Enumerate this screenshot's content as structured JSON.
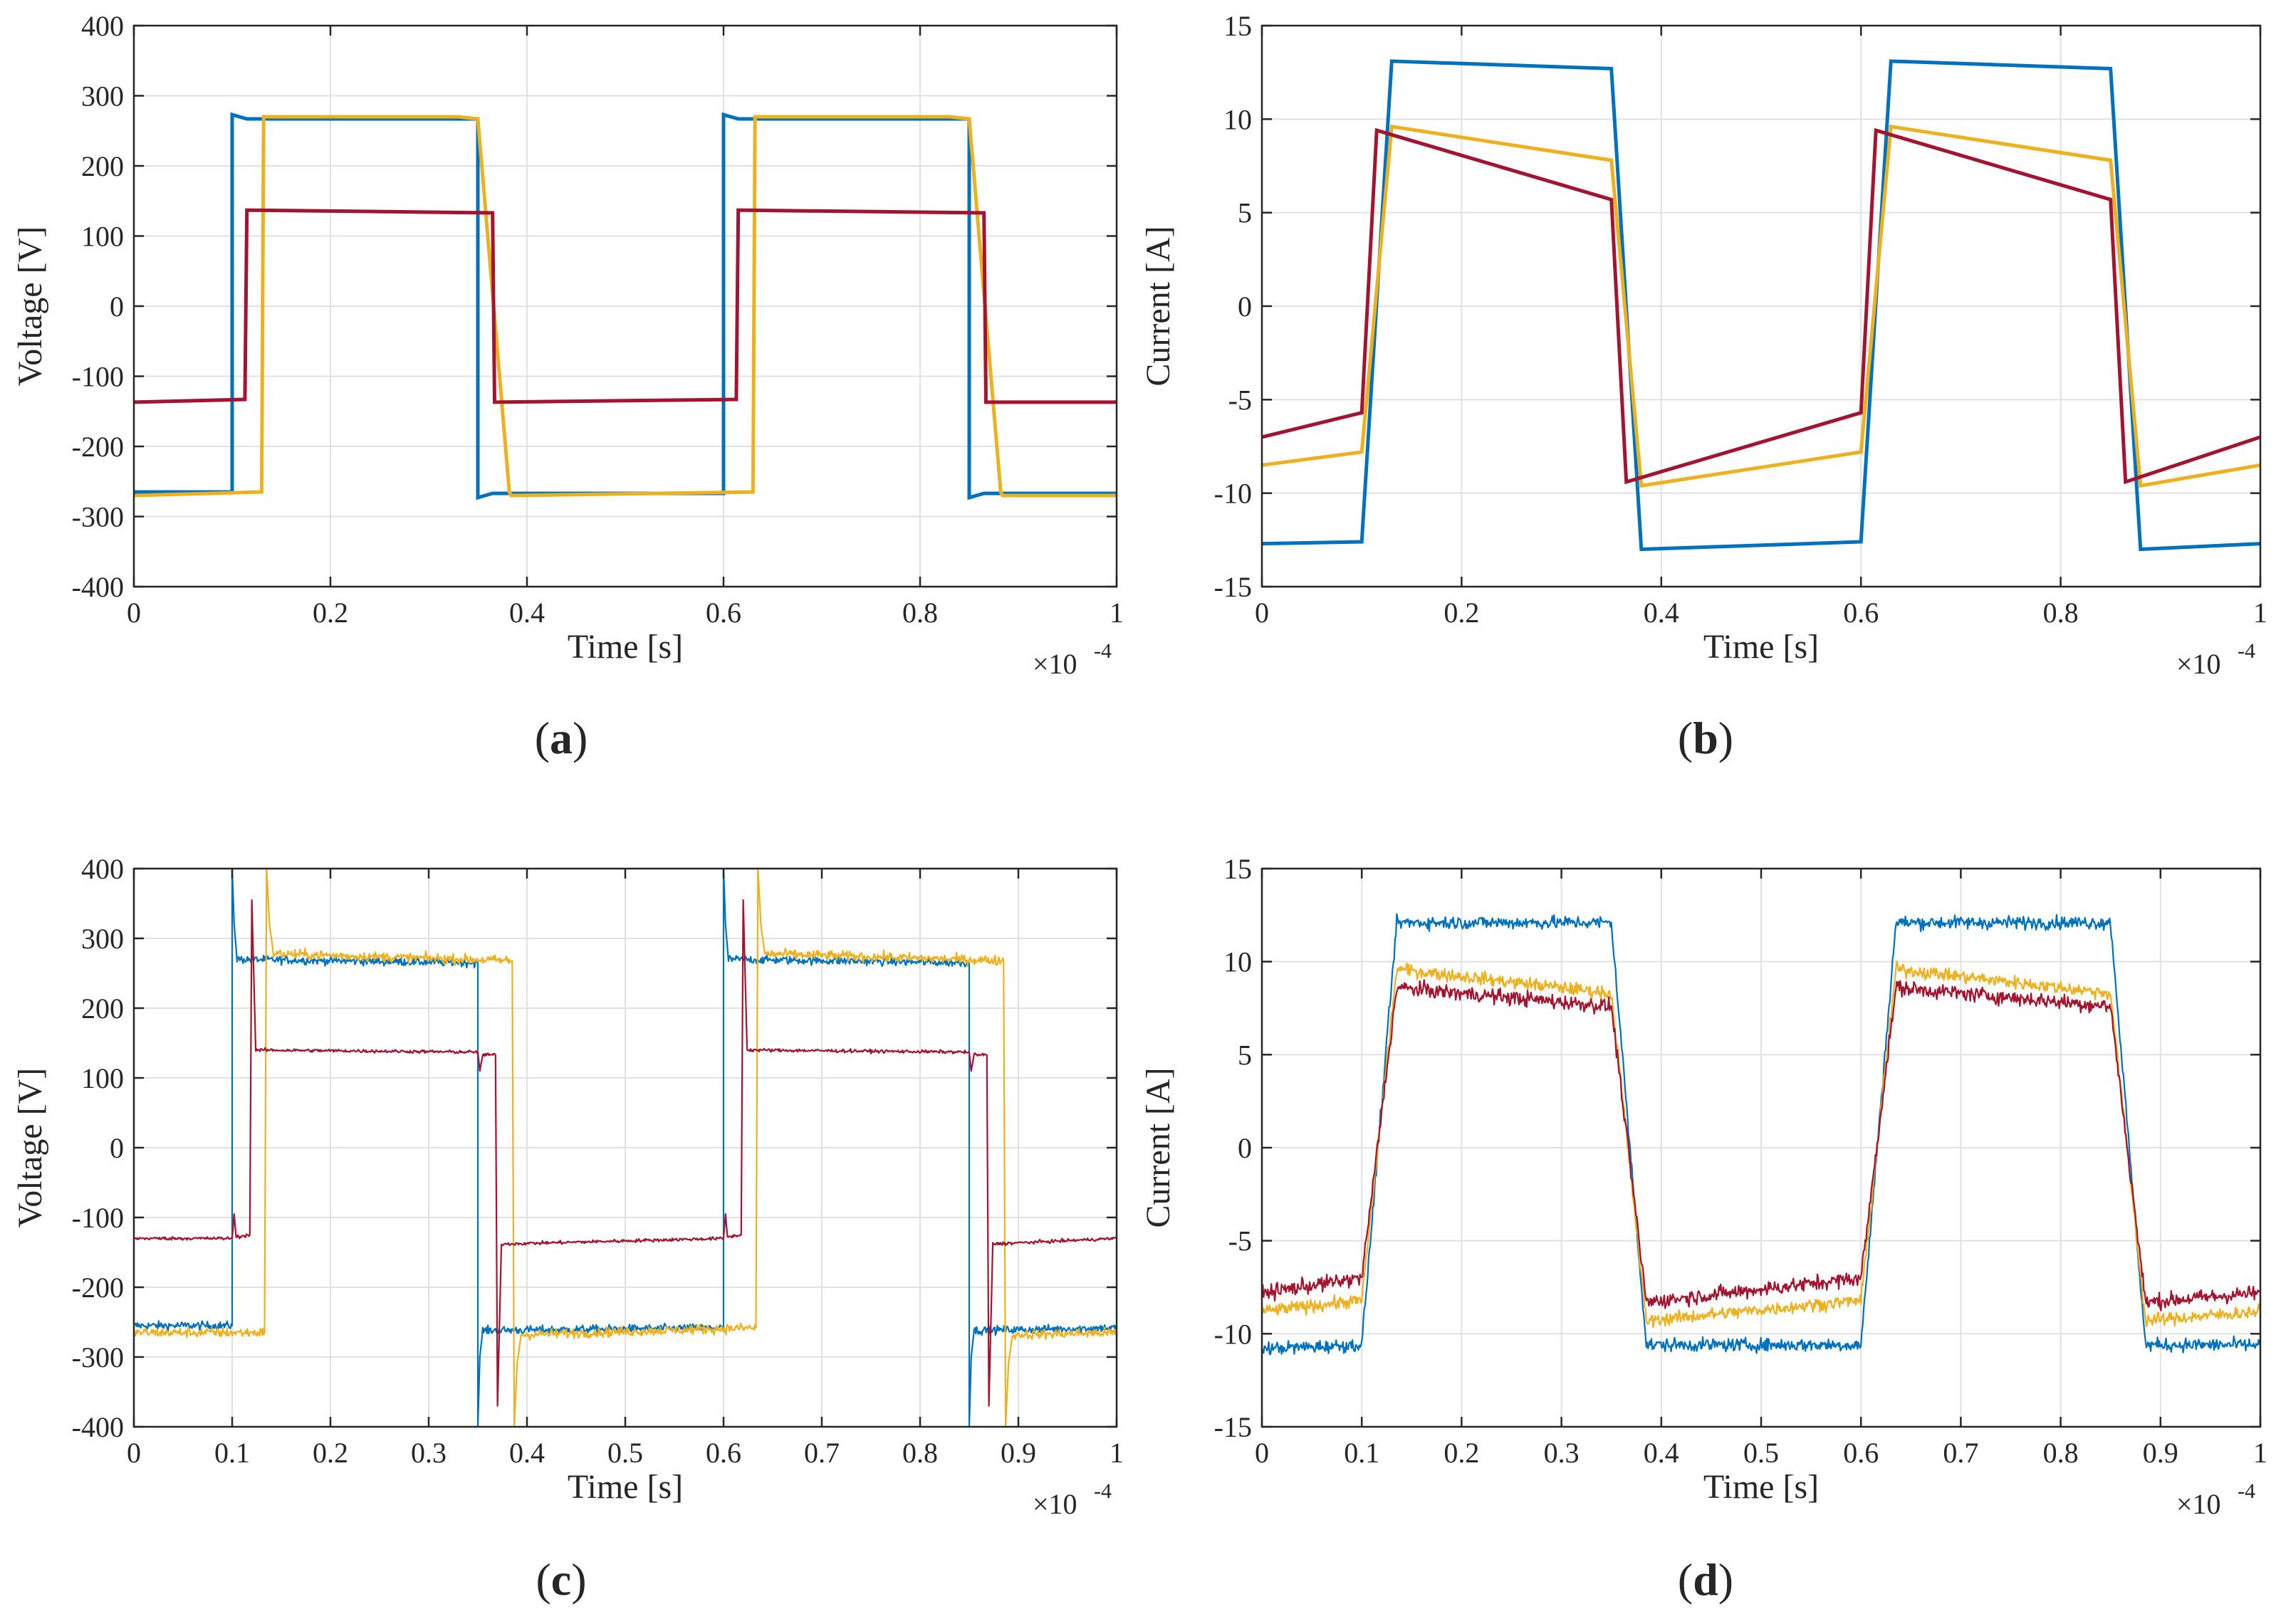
{
  "series_colors": {
    "blue": "#0072BD",
    "yellow": "#EDB120",
    "red": "#A2142F"
  },
  "chart_data": [
    {
      "id": "a",
      "type": "line",
      "caption": "a",
      "xlabel": "Time [s]",
      "ylabel": "Voltage [V]",
      "xlim": [
        0,
        1
      ],
      "ylim": [
        -400,
        400
      ],
      "x_exponent_base": "×10",
      "x_exponent_power": "-4",
      "xticks": [
        0,
        0.2,
        0.4,
        0.6,
        0.8,
        1
      ],
      "xtick_labels": [
        "0",
        "0.2",
        "0.4",
        "0.6",
        "0.8",
        "1"
      ],
      "yticks": [
        -400,
        -300,
        -200,
        -100,
        0,
        100,
        200,
        300,
        400
      ],
      "ytick_labels": [
        "-400",
        "-300",
        "-200",
        "-100",
        "0",
        "100",
        "200",
        "300",
        "400"
      ],
      "noisy": false,
      "series": [
        {
          "name": "blue",
          "color": "#0072BD",
          "x": [
            0,
            0.1,
            0.1,
            0.115,
            0.35,
            0.35,
            0.365,
            0.6,
            0.6,
            0.615,
            0.85,
            0.85,
            0.865,
            1
          ],
          "y": [
            -265,
            -265,
            273,
            267,
            267,
            -273,
            -267,
            -267,
            273,
            267,
            267,
            -273,
            -267,
            -267
          ]
        },
        {
          "name": "yellow",
          "color": "#EDB120",
          "x": [
            0,
            0.13,
            0.132,
            0.33,
            0.35,
            0.382,
            0.384,
            0.63,
            0.632,
            0.83,
            0.85,
            0.882,
            0.884,
            1
          ],
          "y": [
            -270,
            -265,
            270,
            270,
            267,
            -265,
            -270,
            -265,
            270,
            270,
            267,
            -265,
            -270,
            -270
          ]
        },
        {
          "name": "red",
          "color": "#A2142F",
          "x": [
            0,
            0.113,
            0.115,
            0.365,
            0.367,
            0.613,
            0.615,
            0.865,
            0.867,
            1
          ],
          "y": [
            -137,
            -133,
            137,
            133,
            -137,
            -133,
            137,
            133,
            -137,
            -137
          ]
        }
      ]
    },
    {
      "id": "b",
      "type": "line",
      "caption": "b",
      "xlabel": "Time [s]",
      "ylabel": "Current [A]",
      "xlim": [
        0,
        1
      ],
      "ylim": [
        -15,
        15
      ],
      "x_exponent_base": "×10",
      "x_exponent_power": "-4",
      "xticks": [
        0,
        0.2,
        0.4,
        0.6,
        0.8,
        1
      ],
      "xtick_labels": [
        "0",
        "0.2",
        "0.4",
        "0.6",
        "0.8",
        "1"
      ],
      "yticks": [
        -15,
        -10,
        -5,
        0,
        5,
        10,
        15
      ],
      "ytick_labels": [
        "-15",
        "-10",
        "-5",
        "0",
        "5",
        "10",
        "15"
      ],
      "noisy": false,
      "series": [
        {
          "name": "blue",
          "color": "#0072BD",
          "x": [
            0,
            0.1,
            0.13,
            0.35,
            0.38,
            0.6,
            0.63,
            0.85,
            0.88,
            1
          ],
          "y": [
            -12.7,
            -12.6,
            13.1,
            12.7,
            -13.0,
            -12.6,
            13.1,
            12.7,
            -13.0,
            -12.7
          ]
        },
        {
          "name": "yellow",
          "color": "#EDB120",
          "x": [
            0,
            0.1,
            0.13,
            0.35,
            0.38,
            0.6,
            0.63,
            0.85,
            0.88,
            1
          ],
          "y": [
            -8.5,
            -7.8,
            9.6,
            7.8,
            -9.6,
            -7.8,
            9.6,
            7.8,
            -9.6,
            -8.5
          ]
        },
        {
          "name": "red",
          "color": "#A2142F",
          "x": [
            0,
            0.1,
            0.115,
            0.35,
            0.365,
            0.6,
            0.615,
            0.85,
            0.865,
            1
          ],
          "y": [
            -7.0,
            -5.7,
            9.4,
            5.7,
            -9.4,
            -5.7,
            9.4,
            5.7,
            -9.4,
            -7.0
          ]
        }
      ]
    },
    {
      "id": "c",
      "type": "line",
      "caption": "c",
      "xlabel": "Time [s]",
      "ylabel": "Voltage [V]",
      "xlim": [
        0,
        1
      ],
      "ylim": [
        -400,
        400
      ],
      "x_exponent_base": "×10",
      "x_exponent_power": "-4",
      "xticks": [
        0,
        0.1,
        0.2,
        0.3,
        0.4,
        0.5,
        0.6,
        0.7,
        0.8,
        0.9,
        1
      ],
      "xtick_labels": [
        "0",
        "0.1",
        "0.2",
        "0.3",
        "0.4",
        "0.5",
        "0.6",
        "0.7",
        "0.8",
        "0.9",
        "1"
      ],
      "yticks": [
        -400,
        -300,
        -200,
        -100,
        0,
        100,
        200,
        300,
        400
      ],
      "ytick_labels": [
        "-400",
        "-300",
        "-200",
        "-100",
        "0",
        "100",
        "200",
        "300",
        "400"
      ],
      "noisy": true,
      "series": [
        {
          "name": "blue",
          "color": "#0072BD",
          "noise": 10,
          "x": [
            0,
            0.1,
            0.1,
            0.102,
            0.105,
            0.35,
            0.35,
            0.352,
            0.355,
            0.6,
            0.6,
            0.602,
            0.605,
            0.85,
            0.85,
            0.852,
            0.855,
            1
          ],
          "y": [
            -255,
            -255,
            400,
            320,
            270,
            265,
            -400,
            -300,
            -262,
            -258,
            400,
            320,
            270,
            265,
            -400,
            -300,
            -262,
            -258
          ]
        },
        {
          "name": "yellow",
          "color": "#EDB120",
          "noise": 12,
          "x": [
            0,
            0.133,
            0.135,
            0.138,
            0.142,
            0.385,
            0.387,
            0.39,
            0.394,
            0.633,
            0.635,
            0.638,
            0.642,
            0.885,
            0.887,
            0.89,
            0.894,
            1
          ],
          "y": [
            -265,
            -265,
            400,
            320,
            278,
            268,
            -400,
            -310,
            -268,
            -258,
            400,
            320,
            278,
            268,
            -400,
            -310,
            -268,
            -265
          ]
        },
        {
          "name": "red",
          "color": "#A2142F",
          "noise": 4,
          "x": [
            0,
            0.1,
            0.102,
            0.104,
            0.118,
            0.12,
            0.124,
            0.35,
            0.352,
            0.355,
            0.368,
            0.37,
            0.374,
            0.6,
            0.602,
            0.604,
            0.618,
            0.62,
            0.624,
            0.85,
            0.852,
            0.855,
            0.868,
            0.87,
            0.874,
            1
          ],
          "y": [
            -130,
            -130,
            -95,
            -128,
            -125,
            355,
            140,
            137,
            110,
            133,
            133,
            -370,
            -138,
            -130,
            -95,
            -128,
            -125,
            355,
            140,
            137,
            110,
            133,
            133,
            -370,
            -138,
            -130
          ]
        }
      ]
    },
    {
      "id": "d",
      "type": "line",
      "caption": "d",
      "xlabel": "Time [s]",
      "ylabel": "Current [A]",
      "xlim": [
        0,
        1
      ],
      "ylim": [
        -15,
        15
      ],
      "x_exponent_base": "×10",
      "x_exponent_power": "-4",
      "xticks": [
        0,
        0.1,
        0.2,
        0.3,
        0.4,
        0.5,
        0.6,
        0.7,
        0.8,
        0.9,
        1
      ],
      "xtick_labels": [
        "0",
        "0.1",
        "0.2",
        "0.3",
        "0.4",
        "0.5",
        "0.6",
        "0.7",
        "0.8",
        "0.9",
        "1"
      ],
      "yticks": [
        -15,
        -10,
        -5,
        0,
        5,
        10,
        15
      ],
      "ytick_labels": [
        "-15",
        "-10",
        "-5",
        "0",
        "5",
        "10",
        "15"
      ],
      "noisy": true,
      "series": [
        {
          "name": "blue",
          "color": "#0072BD",
          "noise": 0.6,
          "x": [
            0,
            0.1,
            0.135,
            0.35,
            0.385,
            0.6,
            0.635,
            0.85,
            0.885,
            1
          ],
          "y": [
            -10.8,
            -10.6,
            12.1,
            12.1,
            -10.6,
            -10.6,
            12.1,
            12.1,
            -10.6,
            -10.6
          ]
        },
        {
          "name": "yellow",
          "color": "#EDB120",
          "noise": 0.6,
          "x": [
            0,
            0.1,
            0.135,
            0.35,
            0.385,
            0.6,
            0.635,
            0.85,
            0.885,
            1
          ],
          "y": [
            -8.8,
            -8.2,
            9.6,
            8.3,
            -9.3,
            -8.2,
            9.6,
            8.3,
            -9.3,
            -8.8
          ]
        },
        {
          "name": "red",
          "color": "#A2142F",
          "noise": 0.7,
          "x": [
            0,
            0.1,
            0.135,
            0.35,
            0.385,
            0.6,
            0.635,
            0.85,
            0.885,
            1
          ],
          "y": [
            -7.8,
            -7.0,
            8.6,
            7.6,
            -8.3,
            -7.0,
            8.6,
            7.6,
            -8.3,
            -7.8
          ]
        }
      ]
    }
  ]
}
